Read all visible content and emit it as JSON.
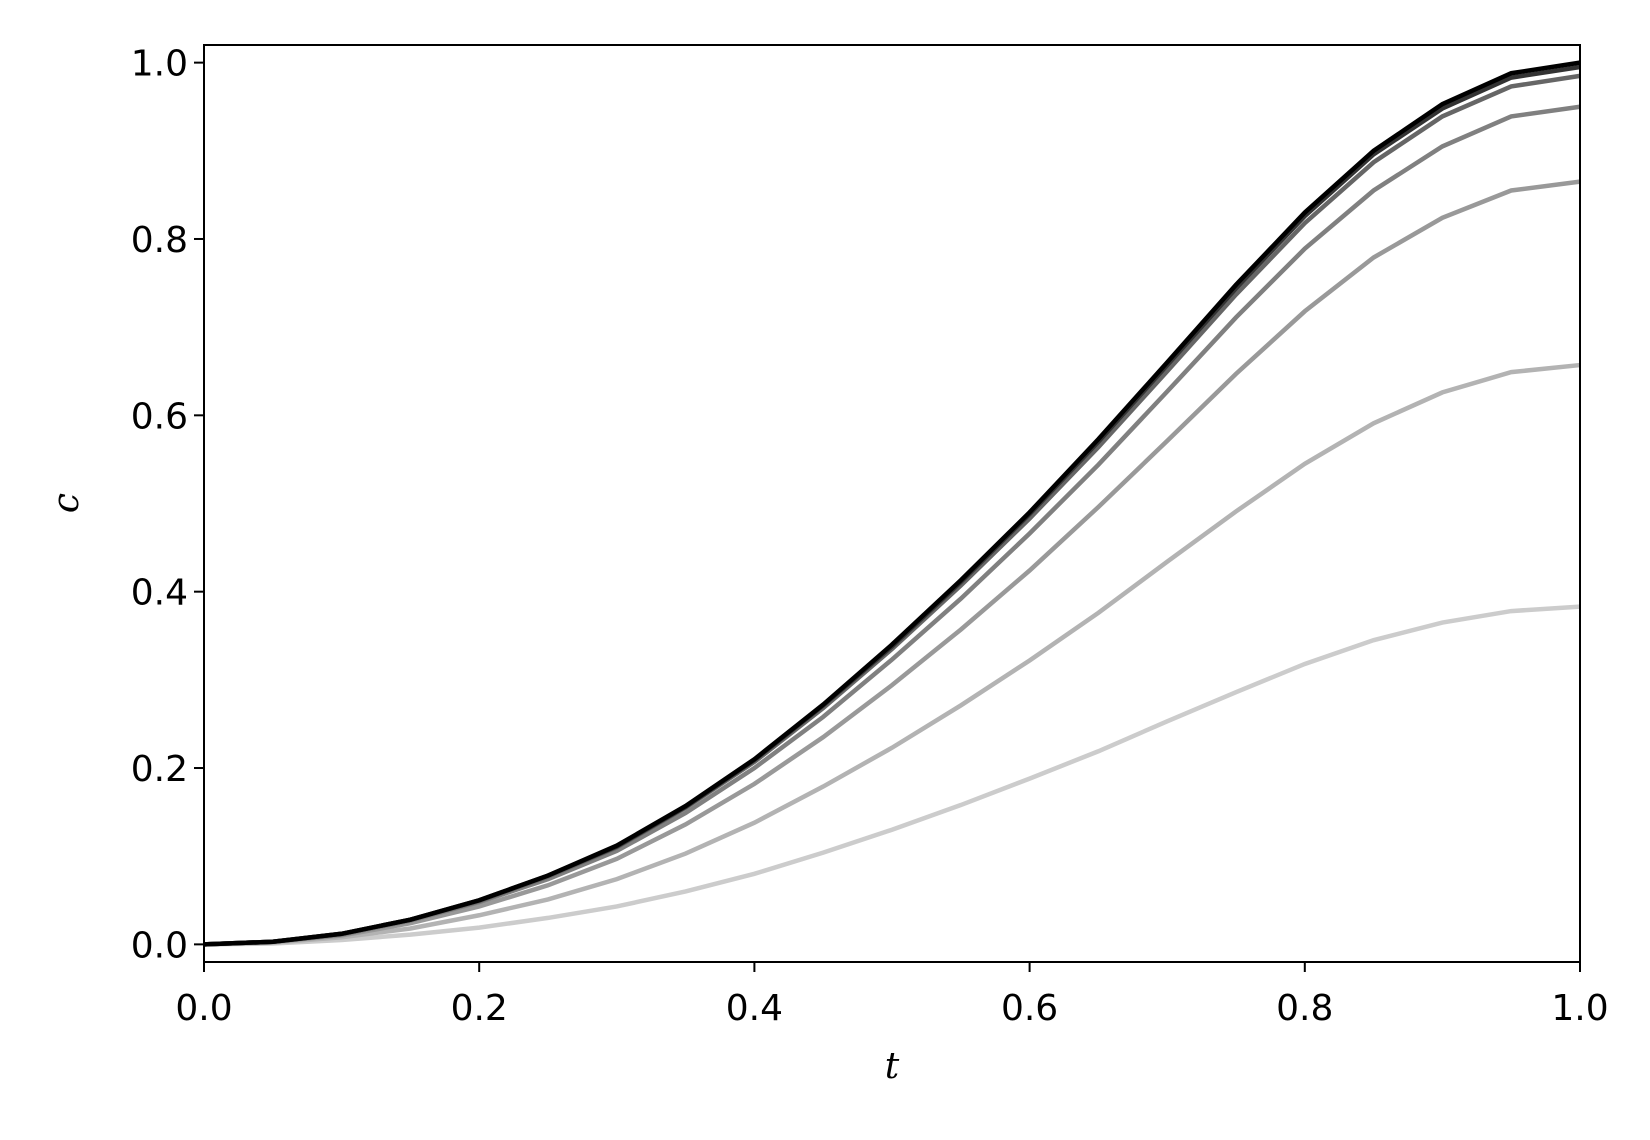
{
  "chart_data": {
    "type": "line",
    "xlabel": "t",
    "ylabel": "c",
    "x": [
      0,
      0.05,
      0.1,
      0.15,
      0.2,
      0.25,
      0.3,
      0.35,
      0.4,
      0.45,
      0.5,
      0.55,
      0.6,
      0.65,
      0.7,
      0.75,
      0.8,
      0.85,
      0.9,
      0.95,
      1.0
    ],
    "series": [
      {
        "color": "#cccccc",
        "values": [
          0,
          0.001,
          0.005,
          0.011,
          0.019,
          0.03,
          0.043,
          0.06,
          0.08,
          0.104,
          0.13,
          0.158,
          0.188,
          0.219,
          0.253,
          0.286,
          0.318,
          0.345,
          0.365,
          0.378,
          0.383
        ]
      },
      {
        "color": "#b3b3b3",
        "values": [
          0,
          0.002,
          0.008,
          0.018,
          0.033,
          0.051,
          0.074,
          0.103,
          0.138,
          0.179,
          0.223,
          0.271,
          0.322,
          0.376,
          0.434,
          0.491,
          0.545,
          0.591,
          0.626,
          0.649,
          0.657
        ]
      },
      {
        "color": "#999999",
        "values": [
          0,
          0.003,
          0.01,
          0.024,
          0.043,
          0.067,
          0.097,
          0.136,
          0.182,
          0.235,
          0.294,
          0.357,
          0.424,
          0.496,
          0.571,
          0.647,
          0.718,
          0.779,
          0.824,
          0.855,
          0.865
        ]
      },
      {
        "color": "#808080",
        "values": [
          0,
          0.003,
          0.011,
          0.027,
          0.048,
          0.074,
          0.106,
          0.149,
          0.2,
          0.258,
          0.323,
          0.392,
          0.466,
          0.544,
          0.627,
          0.711,
          0.789,
          0.855,
          0.905,
          0.939,
          0.95
        ]
      },
      {
        "color": "#666666",
        "values": [
          0,
          0.003,
          0.012,
          0.028,
          0.049,
          0.077,
          0.11,
          0.155,
          0.207,
          0.268,
          0.335,
          0.407,
          0.483,
          0.564,
          0.65,
          0.737,
          0.818,
          0.887,
          0.939,
          0.973,
          0.985
        ]
      },
      {
        "color": "#333333",
        "values": [
          0,
          0.003,
          0.012,
          0.028,
          0.05,
          0.078,
          0.111,
          0.156,
          0.209,
          0.271,
          0.338,
          0.411,
          0.488,
          0.57,
          0.657,
          0.744,
          0.826,
          0.896,
          0.948,
          0.983,
          0.995
        ]
      },
      {
        "color": "#000000",
        "values": [
          0,
          0.003,
          0.012,
          0.028,
          0.05,
          0.078,
          0.112,
          0.157,
          0.21,
          0.272,
          0.34,
          0.413,
          0.49,
          0.573,
          0.66,
          0.748,
          0.83,
          0.9,
          0.953,
          0.988,
          1.0
        ]
      }
    ],
    "xlim": [
      0,
      1.0
    ],
    "ylim": [
      -0.02,
      1.02
    ],
    "xticks": [
      {
        "value": 0,
        "label": "0.0"
      },
      0.2,
      0.4,
      0.6,
      0.8,
      {
        "value": 1,
        "label": "1.0"
      }
    ],
    "yticks": [
      {
        "value": 0,
        "label": "0.0"
      },
      0.2,
      0.4,
      0.6,
      0.8,
      {
        "value": 1,
        "label": "1.0"
      }
    ]
  }
}
